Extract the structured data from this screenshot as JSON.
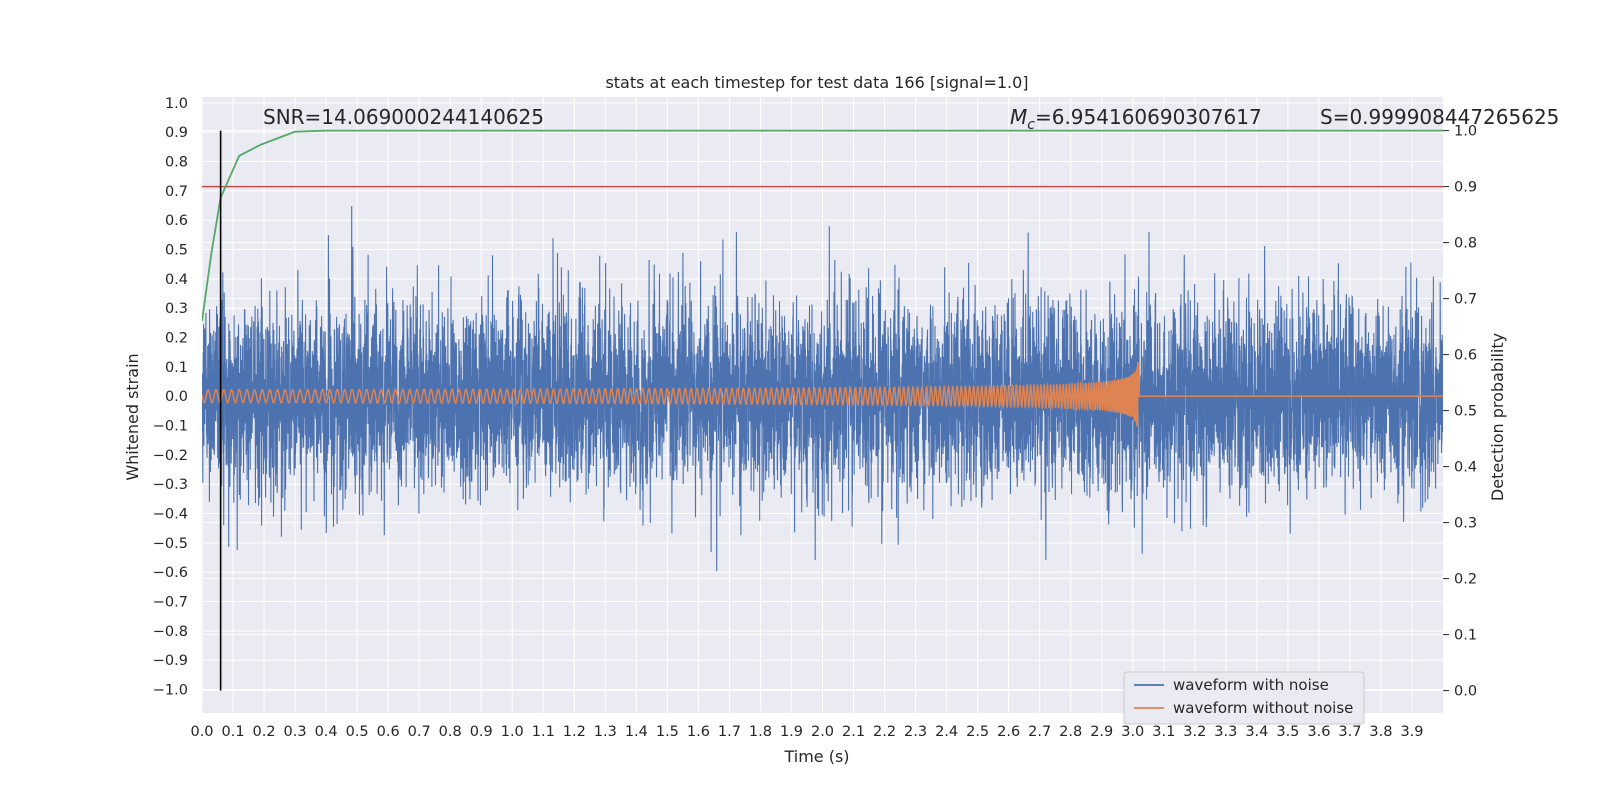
{
  "chart_data": {
    "type": "line",
    "title": "stats at each timestep for test data 166 [signal=1.0]",
    "xlabel": "Time (s)",
    "ylabel": "Whitened strain",
    "y2label": "Detection probability",
    "xlim": [
      0.0,
      4.0
    ],
    "ylim": [
      -1.08,
      1.02
    ],
    "y2lim": [
      -0.04,
      1.06
    ],
    "x_ticks": [
      "0.0",
      "0.1",
      "0.2",
      "0.3",
      "0.4",
      "0.5",
      "0.6",
      "0.7",
      "0.8",
      "0.9",
      "1.0",
      "1.1",
      "1.2",
      "1.3",
      "1.4",
      "1.5",
      "1.6",
      "1.7",
      "1.8",
      "1.9",
      "2.0",
      "2.1",
      "2.2",
      "2.3",
      "2.4",
      "2.5",
      "2.6",
      "2.7",
      "2.8",
      "2.9",
      "3.0",
      "3.1",
      "3.2",
      "3.3",
      "3.4",
      "3.5",
      "3.6",
      "3.7",
      "3.8",
      "3.9"
    ],
    "y_ticks": [
      "1.0",
      "0.9",
      "0.8",
      "0.7",
      "0.6",
      "0.5",
      "0.4",
      "0.3",
      "0.2",
      "0.1",
      "0.0",
      "−0.1",
      "−0.2",
      "−0.3",
      "−0.4",
      "−0.5",
      "−0.6",
      "−0.7",
      "−0.8",
      "−0.9",
      "−1.0"
    ],
    "y2_ticks": [
      "1.0",
      "0.9",
      "0.8",
      "0.7",
      "0.6",
      "0.5",
      "0.4",
      "0.3",
      "0.2",
      "0.1",
      "0.0"
    ],
    "snr_text": "SNR=14.069000244140625",
    "mc_label": "M",
    "mc_sub": "c",
    "mc_value": "=6.954160690307617",
    "s_text": "S=0.999908447265625",
    "threshold": 0.9,
    "marker_time": 0.06,
    "merger_time": 3.02,
    "noise_std": 0.16,
    "prob_curve": [
      [
        0.0,
        0.66
      ],
      [
        0.03,
        0.78
      ],
      [
        0.06,
        0.88
      ],
      [
        0.12,
        0.955
      ],
      [
        0.19,
        0.975
      ],
      [
        0.3,
        0.998
      ],
      [
        0.4,
        1.0
      ],
      [
        4.0,
        1.0
      ]
    ],
    "series": [
      {
        "name": "waveform with noise",
        "color": "#4c72b0"
      },
      {
        "name": "waveform without noise",
        "color": "#dd8452"
      }
    ],
    "colors": {
      "background": "#eaeaf2",
      "grid": "#ffffff",
      "noise": "#4c72b0",
      "clean": "#dd8452",
      "probability": "#55a868",
      "threshold": "#c44e52",
      "marker": "#000000"
    }
  }
}
